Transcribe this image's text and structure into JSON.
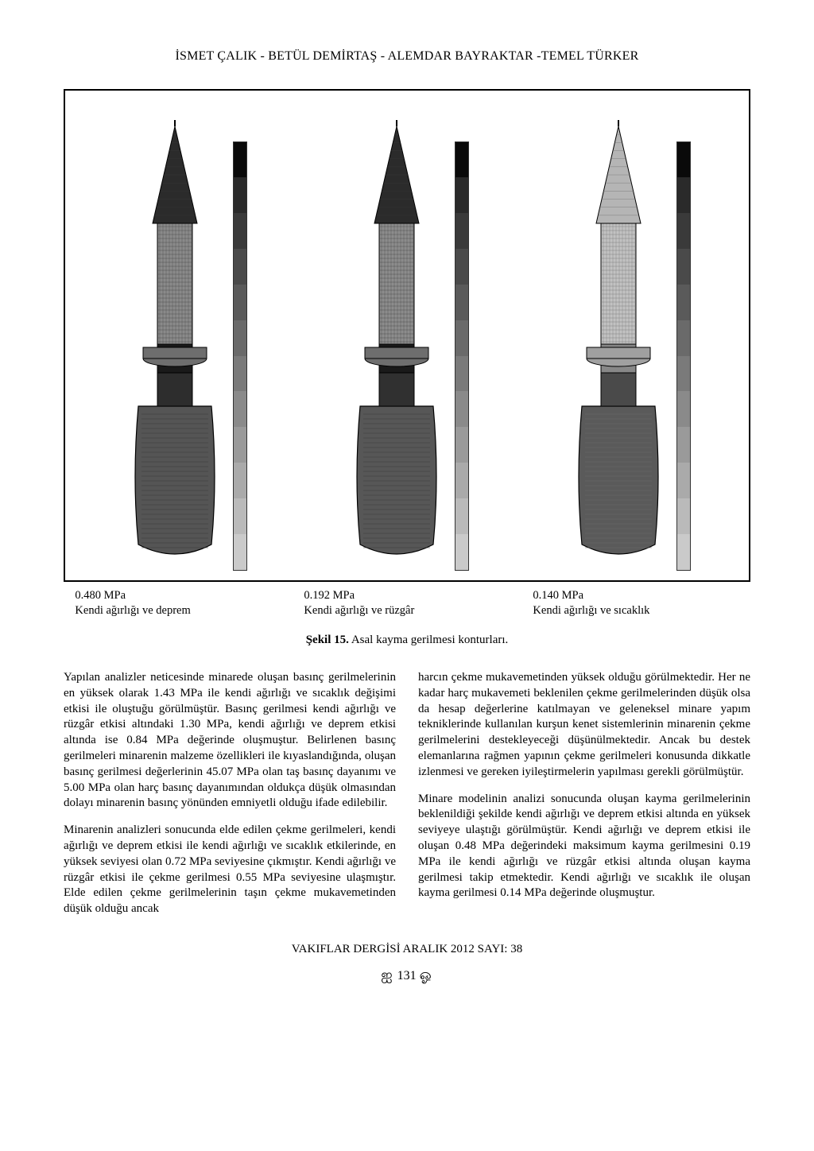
{
  "header": {
    "authors": "İSMET ÇALIK - BETÜL DEMİRTAŞ - ALEMDAR BAYRAKTAR -TEMEL TÜRKER"
  },
  "figure": {
    "frame_border_color": "#000000",
    "background_color": "#ffffff",
    "panels": [
      {
        "id": "panel-1",
        "value_mpa": "0.480 MPa",
        "condition": "Kendi ağırlığı ve deprem",
        "minaret": {
          "spire_color": "#2b2b2b",
          "shaft_upper_color": "#8a8a8a",
          "balcony_color": "#6e6e6e",
          "shaft_mid_color": "#1a1a1a",
          "shaft_lower_color": "#2d2d2d",
          "base_color": "#555555",
          "outline_color": "#000000",
          "hatch_color": "#3a3a3a"
        },
        "colorbar_colors": [
          "#0a0a0a",
          "#2a2a2a",
          "#3a3a3a",
          "#4a4a4a",
          "#5a5a5a",
          "#6a6a6a",
          "#7a7a7a",
          "#8a8a8a",
          "#9a9a9a",
          "#aaaaaa",
          "#bababa",
          "#cacaca"
        ]
      },
      {
        "id": "panel-2",
        "value_mpa": "0.192 MPa",
        "condition": "Kendi ağırlığı ve rüzgâr",
        "minaret": {
          "spire_color": "#2b2b2b",
          "shaft_upper_color": "#8c8c8c",
          "balcony_color": "#6e6e6e",
          "shaft_mid_color": "#1a1a1a",
          "shaft_lower_color": "#303030",
          "base_color": "#575757",
          "outline_color": "#000000",
          "hatch_color": "#3a3a3a"
        },
        "colorbar_colors": [
          "#0a0a0a",
          "#2a2a2a",
          "#3a3a3a",
          "#4a4a4a",
          "#5a5a5a",
          "#6a6a6a",
          "#7a7a7a",
          "#8a8a8a",
          "#9a9a9a",
          "#aaaaaa",
          "#bababa",
          "#cacaca"
        ]
      },
      {
        "id": "panel-3",
        "value_mpa": "0.140 MPa",
        "condition": "Kendi ağırlığı ve sıcaklık",
        "minaret": {
          "spire_color": "#b5b5b5",
          "shaft_upper_color": "#c2c2c2",
          "balcony_color": "#a0a0a0",
          "shaft_mid_color": "#888888",
          "shaft_lower_color": "#4a4a4a",
          "base_color": "#5a5a5a",
          "outline_color": "#000000",
          "hatch_color": "#6a6a6a"
        },
        "colorbar_colors": [
          "#0a0a0a",
          "#2a2a2a",
          "#3a3a3a",
          "#4a4a4a",
          "#5a5a5a",
          "#6a6a6a",
          "#7a7a7a",
          "#8a8a8a",
          "#9a9a9a",
          "#aaaaaa",
          "#bababa",
          "#cacaca"
        ]
      }
    ],
    "caption_label": "Şekil 15.",
    "caption_text": "Asal kayma gerilmesi konturları."
  },
  "body": {
    "p1": "Yapılan analizler neticesinde minarede oluşan basınç gerilmelerinin en yüksek olarak 1.43 MPa ile kendi ağırlığı ve sıcaklık değişimi etkisi ile oluştuğu görülmüştür. Basınç gerilmesi kendi ağırlığı ve rüzgâr etkisi altındaki 1.30 MPa, kendi ağırlığı ve deprem etkisi altında ise 0.84 MPa değerinde oluşmuştur. Belirlenen basınç gerilmeleri minarenin malzeme özellikleri ile kıyaslandığında, oluşan basınç gerilmesi değerlerinin 45.07 MPa olan taş basınç dayanımı ve 5.00 MPa olan harç basınç dayanımından oldukça düşük olmasından dolayı minarenin basınç yönünden emniyetli olduğu ifade edilebilir.",
    "p2": "Minarenin analizleri sonucunda elde edilen çekme gerilmeleri, kendi ağırlığı ve deprem etkisi ile kendi ağırlığı ve sıcaklık etkilerinde, en yüksek seviyesi olan 0.72 MPa seviyesine çıkmıştır. Kendi ağırlığı ve rüzgâr etkisi ile çekme gerilmesi 0.55 MPa seviyesine ulaşmıştır. Elde edilen çekme gerilmelerinin taşın çekme mukavemetinden düşük olduğu ancak",
    "p3": "harcın çekme mukavemetinden yüksek olduğu görülmektedir. Her ne kadar harç mukavemeti beklenilen çekme gerilmelerinden düşük olsa da hesap değerlerine katılmayan ve geleneksel minare yapım tekniklerinde kullanılan kurşun kenet sistemlerinin minarenin çekme gerilmelerini destekleyeceği düşünülmektedir. Ancak bu destek elemanlarına rağmen yapının çekme gerilmeleri konusunda dikkatle izlenmesi ve gereken iyileştirmelerin yapılması gerekli görülmüştür.",
    "p4": "Minare modelinin analizi sonucunda oluşan kayma gerilmelerinin beklenildiği şekilde kendi ağırlığı ve deprem etkisi altında en yüksek seviyeye ulaştığı görülmüştür. Kendi ağırlığı ve deprem etkisi ile oluşan 0.48 MPa değerindeki maksimum kayma gerilmesini 0.19 MPa ile kendi ağırlığı ve rüzgâr etkisi altında oluşan kayma gerilmesi takip etmektedir. Kendi ağırlığı ve sıcaklık ile oluşan kayma gerilmesi 0.14 MPa değerinde oluşmuştur."
  },
  "footer": {
    "journal": "VAKIFLAR DERGİSİ ARALIK 2012 SAYI: 38",
    "page_ornament_left": "ஐ",
    "page_number": "131",
    "page_ornament_right": "ஓ"
  }
}
